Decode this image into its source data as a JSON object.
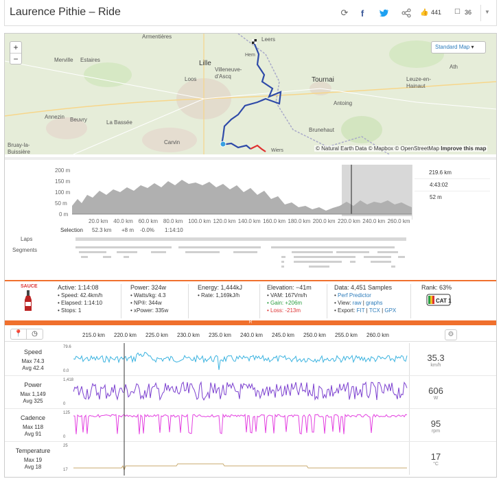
{
  "header": {
    "title": "Laurence Pithie – Ride",
    "kudos_count": "441",
    "comments_count": "36"
  },
  "map": {
    "style_button": "Standard Map",
    "zoom_in": "+",
    "zoom_out": "−",
    "attribution": "© Natural Earth Data © Mapbox © OpenStreetMap",
    "improve_link": "Improve this map",
    "labels": [
      "Armentières",
      "Leers",
      "Lille",
      "Villeneuve-d'Ascq",
      "Tournai",
      "Ath",
      "Leuze-en-Hainaut",
      "Merville",
      "Estaires",
      "Loos",
      "Annezin",
      "Beuvry",
      "La Bassée",
      "Antoing",
      "Brunehaut",
      "Carvin",
      "Bruay-la-Buissière",
      "Hem",
      "Wiers"
    ]
  },
  "elevation": {
    "y_ticks": [
      "200 m",
      "150 m",
      "100 m",
      "50 m",
      "0 m"
    ],
    "x_ticks": [
      "20.0 km",
      "40.0 km",
      "60.0 km",
      "80.0 km",
      "100.0 km",
      "120.0 km",
      "140.0 km",
      "160.0 km",
      "180.0 km",
      "200.0 km",
      "220.0 km",
      "240.0 km",
      "260.0 km"
    ],
    "side_stats": [
      "219.6 km",
      "4:43:02",
      "52 m"
    ],
    "selection_label": "Selection",
    "selection_values": [
      "52.3 km",
      "+8 m",
      "-0.0%",
      "1:14:10"
    ],
    "laps_label": "Laps",
    "segments_label": "Segments"
  },
  "dashboard": {
    "sauce_label": "SAUCE",
    "active": {
      "title": "Active: 1:14:08",
      "lines": [
        "• Speed: 42.4km/h",
        "• Elapsed: 1:14:10",
        "• Stops: 1"
      ]
    },
    "power": {
      "title": "Power: 324w",
      "lines": [
        "• Watts/kg: 4.3",
        "• NP®: 344w",
        "• xPower: 335w"
      ]
    },
    "energy": {
      "title": "Energy: 1,444kJ",
      "lines": [
        "• Rate: 1,169kJ/h"
      ]
    },
    "elevation": {
      "title": "Elevation: −41m",
      "lines": [
        "• VAM: 167Vm/h",
        "• Gain: +206m",
        "• Loss: -213m"
      ]
    },
    "data": {
      "title": "Data: 4,451 Samples",
      "perf": "Perf Predictor",
      "view_prefix": "• View: ",
      "view_raw": "raw",
      "view_graphs": "graphs",
      "export_prefix": "• Export: ",
      "export_fit": "FIT",
      "export_tcx": "TCX",
      "export_gpx": "GPX"
    },
    "rank": {
      "title": "Rank: 63%",
      "badge": "CAT 1"
    }
  },
  "streams": {
    "x_ticks": [
      "215.0 km",
      "220.0 km",
      "225.0 km",
      "230.0 km",
      "235.0 km",
      "240.0 km",
      "245.0 km",
      "250.0 km",
      "255.0 km",
      "260.0 km"
    ],
    "rows": [
      {
        "name": "Speed",
        "max": "Max 74.3",
        "avg": "Avg 42.4",
        "top": "79.6",
        "bottom": "0.0",
        "value": "35.3",
        "unit": "km/h",
        "color": "#3bb3e0"
      },
      {
        "name": "Power",
        "max": "Max 1,149",
        "avg": "Avg 325",
        "top": "1,418",
        "bottom": "0",
        "value": "606",
        "unit": "W",
        "color": "#7b3fcf"
      },
      {
        "name": "Cadence",
        "max": "Max 118",
        "avg": "Avg 91",
        "top": "125",
        "bottom": "0",
        "value": "95",
        "unit": "rpm",
        "color": "#e33ee0"
      },
      {
        "name": "Temperature",
        "max": "Max 19",
        "avg": "Avg 18",
        "top": "25",
        "bottom": "17",
        "value": "17",
        "unit": "°C",
        "color": "#c8aa6e"
      }
    ]
  }
}
